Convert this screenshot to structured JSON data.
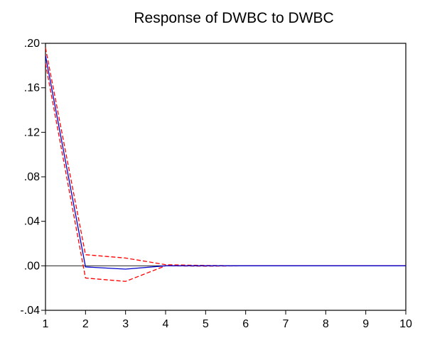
{
  "chart_data": {
    "type": "line",
    "title": "Response of DWBC to DWBC",
    "xlabel": "",
    "ylabel": "",
    "x": [
      1,
      2,
      3,
      4,
      5,
      6,
      7,
      8,
      9,
      10
    ],
    "xlim": [
      1,
      10
    ],
    "ylim": [
      -0.04,
      0.2
    ],
    "x_ticks": [
      {
        "value": 1,
        "label": "1"
      },
      {
        "value": 2,
        "label": "2"
      },
      {
        "value": 3,
        "label": "3"
      },
      {
        "value": 4,
        "label": "4"
      },
      {
        "value": 5,
        "label": "5"
      },
      {
        "value": 6,
        "label": "6"
      },
      {
        "value": 7,
        "label": "7"
      },
      {
        "value": 8,
        "label": "8"
      },
      {
        "value": 9,
        "label": "9"
      },
      {
        "value": 10,
        "label": "10"
      }
    ],
    "y_ticks": [
      {
        "value": 0.2,
        "label": ".20"
      },
      {
        "value": 0.16,
        "label": ".16"
      },
      {
        "value": 0.12,
        "label": ".12"
      },
      {
        "value": 0.08,
        "label": ".08"
      },
      {
        "value": 0.04,
        "label": ".04"
      },
      {
        "value": 0.0,
        "label": ".00"
      },
      {
        "value": -0.04,
        "label": "-.04"
      }
    ],
    "zero_line": true,
    "grid": false,
    "series": [
      {
        "role": "response",
        "color": "#0000cc",
        "dash": "solid",
        "values": [
          0.189,
          -0.001,
          -0.003,
          0.0,
          0.0,
          0.0,
          0.0,
          0.0,
          0.0,
          0.0
        ]
      },
      {
        "role": "upper-band",
        "color": "#ff0000",
        "dash": "dashed",
        "values": [
          0.196,
          0.01,
          0.007,
          0.001,
          0.0003,
          0.0,
          0.0,
          0.0,
          0.0,
          0.0
        ]
      },
      {
        "role": "lower-band",
        "color": "#ff0000",
        "dash": "dashed",
        "values": [
          0.182,
          -0.011,
          -0.014,
          0.0,
          -0.0003,
          0.0,
          0.0,
          0.0,
          0.0,
          0.0
        ]
      }
    ]
  }
}
